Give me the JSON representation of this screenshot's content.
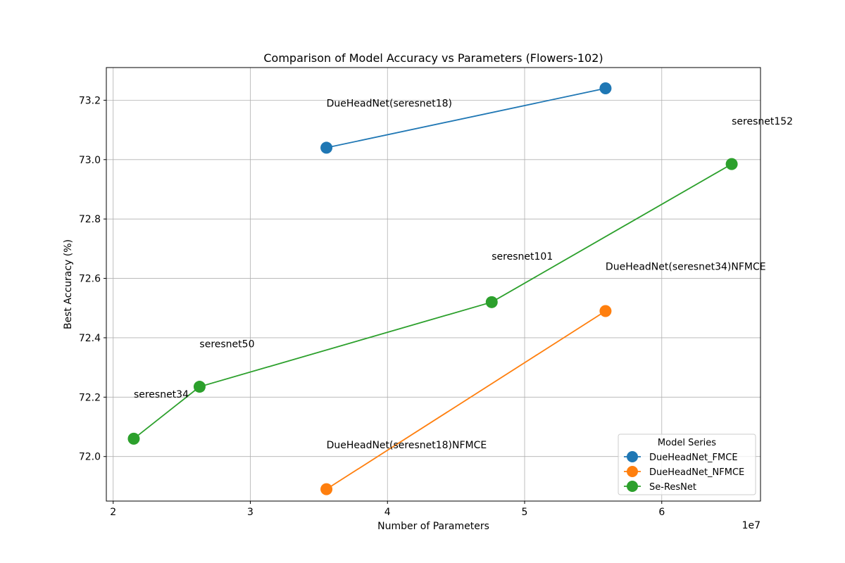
{
  "chart_data": {
    "type": "line",
    "title": "Comparison of Model Accuracy vs Parameters (Flowers-102)",
    "xlabel": "Number of Parameters",
    "ylabel": "Best Accuracy (%)",
    "x_offset_label": "1e7",
    "xlim": [
      1.95,
      6.72
    ],
    "ylim": [
      71.85,
      73.31
    ],
    "x_ticks": [
      2,
      3,
      4,
      5,
      6
    ],
    "x_tick_labels": [
      "2",
      "3",
      "4",
      "5",
      "6"
    ],
    "y_ticks": [
      72.0,
      72.2,
      72.4,
      72.6,
      72.8,
      73.0,
      73.2
    ],
    "y_tick_labels": [
      "72.0",
      "72.2",
      "72.4",
      "72.6",
      "72.8",
      "73.0",
      "73.2"
    ],
    "grid": true,
    "legend": {
      "title": "Model Series",
      "position": "bottom-right"
    },
    "series": [
      {
        "name": "DueHeadNet_FMCE",
        "color": "#1f77b4",
        "points": [
          {
            "x": 3.555,
            "y": 73.04
          },
          {
            "x": 5.59,
            "y": 73.24
          }
        ]
      },
      {
        "name": "DueHeadNet_NFMCE",
        "color": "#ff7f0e",
        "points": [
          {
            "x": 3.555,
            "y": 71.89
          },
          {
            "x": 5.59,
            "y": 72.49
          }
        ]
      },
      {
        "name": "Se-ResNet",
        "color": "#2ca02c",
        "points": [
          {
            "x": 2.15,
            "y": 72.06
          },
          {
            "x": 2.63,
            "y": 72.235
          },
          {
            "x": 4.76,
            "y": 72.52
          },
          {
            "x": 6.51,
            "y": 72.985
          }
        ]
      }
    ],
    "annotations": [
      {
        "text": "DueHeadNet(seresnet18)",
        "x": 3.555,
        "y": 73.19
      },
      {
        "text": "seresnet152",
        "x": 6.51,
        "y": 73.13
      },
      {
        "text": "seresnet101",
        "x": 4.76,
        "y": 72.675
      },
      {
        "text": "DueHeadNet(seresnet34)NFMCE",
        "x": 5.59,
        "y": 72.64
      },
      {
        "text": "seresnet50",
        "x": 2.63,
        "y": 72.38
      },
      {
        "text": "seresnet34",
        "x": 2.15,
        "y": 72.21
      },
      {
        "text": "DueHeadNet(seresnet18)NFMCE",
        "x": 3.555,
        "y": 72.04
      }
    ]
  }
}
